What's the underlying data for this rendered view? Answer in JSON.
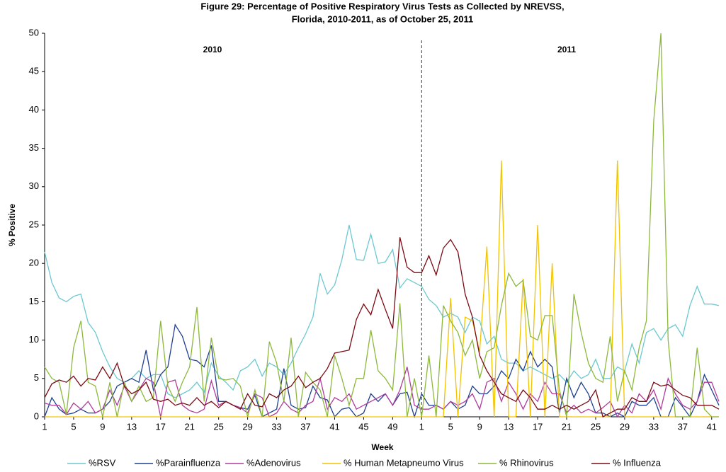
{
  "chart_data": {
    "type": "line",
    "title": "Figure 29: Percentage of Positive Respiratory Virus Tests as Collected by NREVSS,",
    "subtitle": "Florida, 2010-2011, as of October 25, 2011",
    "xlabel": "Week",
    "ylabel": "% Positive",
    "annotations": [
      "2010",
      "2011"
    ],
    "categories": [
      1,
      null,
      null,
      null,
      5,
      null,
      null,
      null,
      9,
      null,
      null,
      null,
      13,
      null,
      null,
      null,
      17,
      null,
      null,
      null,
      21,
      null,
      null,
      null,
      25,
      null,
      null,
      null,
      29,
      null,
      null,
      null,
      33,
      null,
      null,
      null,
      37,
      null,
      null,
      null,
      41,
      null,
      null,
      null,
      45,
      null,
      null,
      null,
      49,
      null,
      null,
      null,
      1,
      null,
      null,
      null,
      5,
      null,
      null,
      null,
      9,
      null,
      null,
      null,
      13,
      null,
      null,
      null,
      17,
      null,
      null,
      null,
      21,
      null,
      null,
      null,
      25,
      null,
      null,
      null,
      29,
      null,
      null,
      null,
      33,
      null,
      null,
      null,
      37,
      null,
      null,
      null,
      41,
      null
    ],
    "ylim": [
      0,
      50
    ],
    "yticks": [
      0,
      5,
      10,
      15,
      20,
      25,
      30,
      35,
      40,
      45,
      50
    ],
    "grid": false,
    "series": [
      {
        "name": "%RSV",
        "color": "#6cc8d0",
        "values": [
          21.5,
          17.5,
          15.5,
          15,
          15.7,
          16,
          12.3,
          11,
          8.5,
          6.5,
          5,
          4.5,
          5,
          6,
          5,
          5.5,
          5.5,
          3,
          2.5,
          3,
          3.5,
          4.5,
          3.2,
          7,
          5.3,
          4.5,
          3.5,
          6,
          6.5,
          7.5,
          5.3,
          7,
          6.5,
          5.5,
          7,
          9,
          10.8,
          13,
          18.7,
          16,
          17.2,
          20.5,
          25,
          20.5,
          20.4,
          23.8,
          20,
          20.2,
          21.8,
          16.8,
          18,
          17.5,
          17,
          15.3,
          14.5,
          13,
          13.5,
          13,
          11,
          13,
          12.5,
          9.5,
          10.5,
          7.5,
          7,
          7,
          6,
          6.5,
          6,
          5.5,
          5,
          5.5,
          4.5,
          6,
          5,
          5.5,
          7.5,
          5,
          5,
          6.5,
          6,
          9.5,
          7,
          11,
          11.5,
          10,
          11.5,
          12,
          10.5,
          14.5,
          17,
          14.7,
          14.7,
          14.5
        ]
      },
      {
        "name": "%Parainfluenza",
        "color": "#1f3f8f",
        "values": [
          0,
          2.5,
          1,
          0.3,
          0.5,
          1,
          0.5,
          0.5,
          1,
          2,
          4,
          4.5,
          5,
          4.5,
          8.7,
          3.5,
          5.5,
          6.5,
          12,
          10.5,
          7.5,
          7.3,
          6.5,
          9.3,
          2,
          2,
          1.5,
          1.2,
          1,
          2.8,
          0,
          0.5,
          1,
          6.3,
          1.5,
          1,
          1.2,
          4,
          2.5,
          2.2,
          0,
          1,
          1.2,
          0,
          0.5,
          3,
          2,
          3,
          1.5,
          3,
          3.2,
          0,
          3,
          1.5,
          1.5,
          1,
          2,
          1,
          1.5,
          4,
          3,
          3,
          4,
          6,
          5,
          7.5,
          6,
          8.5,
          6.5,
          7.5,
          6.5,
          0.5,
          5,
          2.5,
          4.5,
          3,
          0.5,
          0.5,
          0,
          0.5,
          0,
          2,
          1.5,
          1.5,
          2.5,
          0,
          0,
          2.5,
          1.3,
          0,
          2,
          5.5,
          3.5,
          1.5
        ]
      },
      {
        "name": "%Adenovirus",
        "color": "#b03c9c",
        "values": [
          1.8,
          1.5,
          1.5,
          0.3,
          1.8,
          1,
          2,
          0.5,
          1,
          3.5,
          1.5,
          4,
          2,
          3.5,
          5,
          4.5,
          0,
          4.5,
          4.8,
          1.5,
          0.8,
          0.5,
          1,
          4.7,
          1.5,
          2,
          1.5,
          1.2,
          0.5,
          3,
          2.5,
          0,
          0.5,
          2,
          1,
          0.5,
          1.5,
          2,
          5,
          1,
          2.5,
          2,
          3,
          1,
          1.5,
          2,
          2.5,
          3,
          1.5,
          3.5,
          6.5,
          1.5,
          1,
          1,
          1.5,
          1,
          2,
          1.5,
          2,
          3,
          1,
          4.5,
          5,
          2,
          4.5,
          3,
          1,
          3,
          2,
          4.5,
          3,
          3,
          0.5,
          1.5,
          0.5,
          1,
          0.5,
          1.2,
          2,
          0,
          1.5,
          0.5,
          3,
          2,
          3.5,
          1,
          5,
          3,
          1.5,
          1,
          2,
          4.5,
          4.5,
          2
        ]
      },
      {
        "name": "% Human Metapneumo Virus",
        "color": "#f2c200",
        "values": [
          0,
          0,
          0,
          0,
          0,
          0,
          0,
          0,
          0,
          0,
          0,
          0,
          0,
          0,
          0,
          0,
          0,
          0,
          0,
          0,
          0,
          0,
          0,
          0,
          0,
          0,
          0,
          0,
          0,
          0,
          0,
          0,
          0,
          0,
          0,
          0,
          0,
          0,
          0,
          0,
          0,
          0,
          0,
          0,
          0,
          0,
          0,
          0,
          0,
          0,
          0,
          0,
          0,
          0,
          0,
          0,
          15.5,
          0,
          13,
          12.5,
          8.5,
          22.2,
          0,
          33.4,
          0,
          0,
          18,
          0,
          25,
          0,
          20,
          0,
          0,
          0,
          0,
          0,
          0,
          0,
          0,
          33.4,
          0,
          0,
          0,
          0,
          0,
          0,
          0,
          0,
          0,
          0,
          0,
          0,
          0,
          0
        ]
      },
      {
        "name": "% Rhinovirus",
        "color": "#8cb83c",
        "values": [
          6.5,
          5,
          4.5,
          0.3,
          9,
          12.5,
          4.5,
          4,
          0,
          4.5,
          0,
          4.5,
          2,
          4,
          2,
          2.5,
          12.5,
          4,
          2,
          4.5,
          6.5,
          14.3,
          2,
          10.3,
          5,
          4.8,
          5,
          4,
          0,
          3.5,
          0,
          9.8,
          7,
          2,
          10.3,
          0,
          5.8,
          4.5,
          3.5,
          0,
          8,
          5,
          1.5,
          5,
          5,
          11.3,
          6,
          5,
          3.5,
          14.8,
          0,
          5,
          0,
          8,
          0,
          14.5,
          12.5,
          11,
          8,
          10,
          5,
          8.5,
          9,
          14.5,
          18.7,
          17,
          17.8,
          10.5,
          10,
          13.2,
          13.2,
          3.5,
          0,
          16,
          11,
          7,
          5,
          4.5,
          10.5,
          2,
          6,
          3.5,
          9,
          12.5,
          38.5,
          50,
          10,
          0,
          0,
          0,
          9,
          1,
          0,
          0
        ]
      },
      {
        "name": "% Influenza",
        "color": "#7a0a14",
        "values": [
          2.5,
          4.3,
          4.8,
          4.5,
          5.3,
          4,
          5,
          4.8,
          6.5,
          5,
          7,
          4,
          3,
          3.5,
          4.5,
          2.3,
          2,
          2.3,
          1.5,
          1.8,
          1.5,
          2.5,
          1.5,
          2,
          1.2,
          2,
          1.5,
          1,
          3,
          1.5,
          1.3,
          3,
          2.5,
          3.5,
          4,
          5.3,
          3.8,
          4.5,
          5,
          6.3,
          8.3,
          8.5,
          8.7,
          12.7,
          14.7,
          13.3,
          16.6,
          14,
          11.5,
          23.4,
          19.5,
          18.8,
          18.8,
          21,
          18.5,
          22,
          23.1,
          21.5,
          16,
          13,
          8,
          6,
          4.5,
          3,
          2.5,
          2,
          3.5,
          2.5,
          1,
          1,
          1.5,
          1,
          1.5,
          1,
          1.5,
          2,
          3.5,
          0,
          0.5,
          1,
          1,
          2.5,
          2,
          2,
          4.5,
          4,
          4.2,
          3.5,
          2.8,
          2.5,
          1.5,
          1.5,
          1.5,
          1
        ]
      }
    ]
  }
}
